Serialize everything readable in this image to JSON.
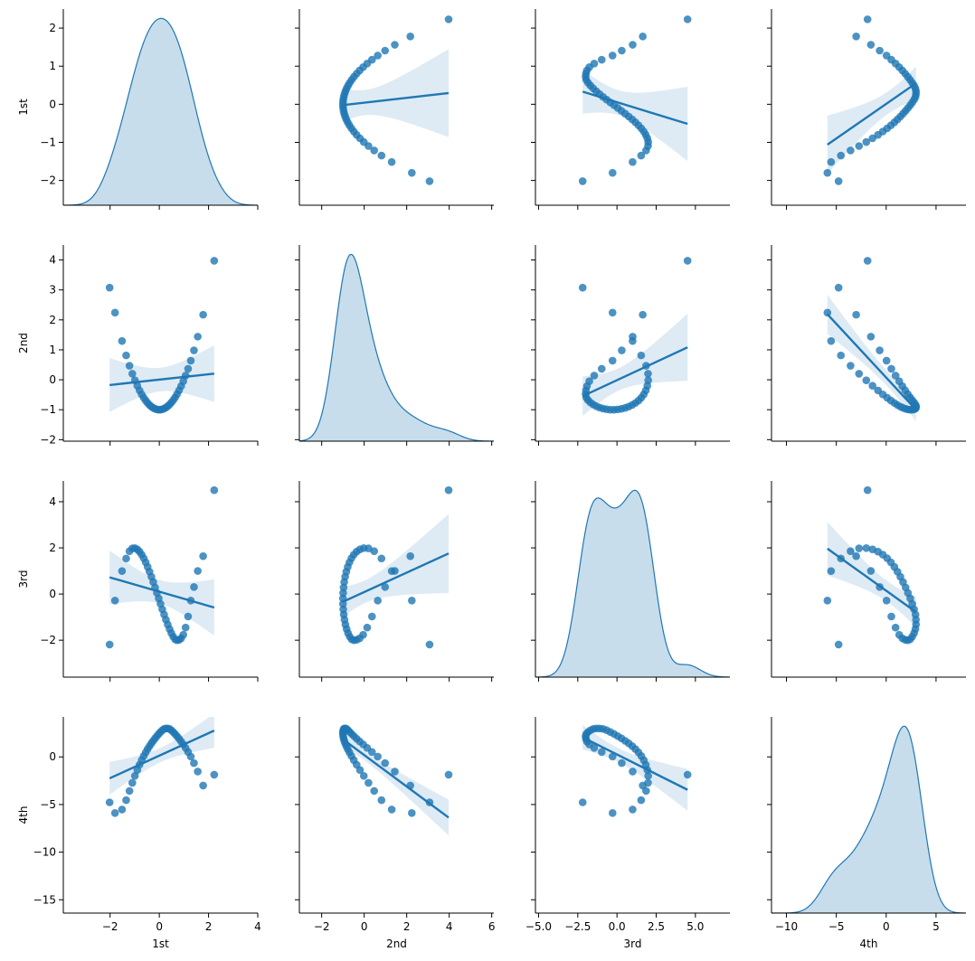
{
  "chart_data": {
    "type": "pairplot",
    "variables": [
      "1st",
      "2nd",
      "3rd",
      "4th"
    ],
    "colors": {
      "point": "#1f77b4",
      "kde_fill": "#1f77b4",
      "ci_fill": "#1f77b4"
    },
    "diag_kind": "kde",
    "offdiag_kind": "reg",
    "grid": false,
    "axes": {
      "1st": {
        "lim": [
          -2.65,
          2.5
        ],
        "ticks": [
          -2,
          -1,
          0,
          1,
          2
        ],
        "kde_lim": [
          -3.9,
          4
        ],
        "kde_ticks": [
          -2,
          0,
          2,
          4
        ]
      },
      "2nd": {
        "lim": [
          -2.05,
          4.5
        ],
        "ticks": [
          -2,
          -1,
          0,
          1,
          2,
          3,
          4
        ],
        "kde_lim": [
          -3.05,
          6.1
        ],
        "kde_ticks": [
          -2,
          0,
          2,
          4,
          6
        ]
      },
      "3rd": {
        "lim": [
          -3.6,
          4.9
        ],
        "ticks": [
          -2,
          0,
          2,
          4
        ],
        "kde_lim": [
          -5.2,
          7.2
        ],
        "kde_ticks": [
          -5.0,
          -2.5,
          0.0,
          2.5,
          5.0
        ],
        "kde_tick_labels": [
          "−5.0",
          "−2.5",
          "0.0",
          "2.5",
          "5.0"
        ]
      },
      "4th": {
        "lim": [
          -16.4,
          4.2
        ],
        "ticks": [
          -15,
          -10,
          -5,
          0
        ],
        "kde_lim": [
          -11.5,
          8
        ],
        "kde_ticks": [
          -10,
          -5,
          0,
          5
        ]
      }
    },
    "series": [
      {
        "name": "1st",
        "values": [
          -2.019,
          -1.8,
          -1.515,
          -1.347,
          -1.212,
          -1.096,
          -0.991,
          -0.894,
          -0.803,
          -0.716,
          -0.633,
          -0.553,
          -0.474,
          -0.397,
          -0.321,
          -0.246,
          -0.172,
          -0.098,
          -0.024,
          0.049,
          0.122,
          0.195,
          0.268,
          0.342,
          0.416,
          0.49,
          0.566,
          0.643,
          0.722,
          0.803,
          0.887,
          0.975,
          1.068,
          1.169,
          1.28,
          1.408,
          1.562,
          1.781,
          2.23
        ]
      },
      {
        "name": "2nd",
        "values": [
          3.076,
          2.241,
          1.295,
          0.814,
          0.469,
          0.201,
          -0.018,
          -0.2,
          -0.356,
          -0.488,
          -0.6,
          -0.694,
          -0.775,
          -0.842,
          -0.897,
          -0.94,
          -0.97,
          -0.99,
          -1.0,
          -0.998,
          -0.985,
          -0.962,
          -0.928,
          -0.883,
          -0.827,
          -0.76,
          -0.68,
          -0.587,
          -0.479,
          -0.355,
          -0.213,
          -0.049,
          0.14,
          0.367,
          0.638,
          0.982,
          1.44,
          2.172,
          3.973
        ]
      },
      {
        "name": "3rd",
        "values": [
          -2.188,
          -0.282,
          0.996,
          1.541,
          1.856,
          1.98,
          1.991,
          1.936,
          1.838,
          1.708,
          1.551,
          1.374,
          1.177,
          0.968,
          0.747,
          0.519,
          0.283,
          0.047,
          -0.19,
          -0.427,
          -0.662,
          -0.891,
          -1.112,
          -1.321,
          -1.516,
          -1.693,
          -1.847,
          -1.965,
          -2.0,
          -1.982,
          -1.918,
          -1.765,
          -1.452,
          -0.974,
          -0.283,
          0.304,
          1.0,
          1.643,
          4.5
        ]
      },
      {
        "name": "4th",
        "values": [
          -4.772,
          -5.893,
          -5.525,
          -4.542,
          -3.573,
          -2.724,
          -1.996,
          -1.37,
          -0.821,
          -0.339,
          0.094,
          0.474,
          0.823,
          1.133,
          1.427,
          1.69,
          1.949,
          2.183,
          2.415,
          2.616,
          2.802,
          2.942,
          2.985,
          2.991,
          2.932,
          2.799,
          2.608,
          2.398,
          2.163,
          1.904,
          1.621,
          1.308,
          0.941,
          0.519,
          0.035,
          -0.651,
          -1.535,
          -3.008,
          -1.868
        ]
      }
    ]
  }
}
